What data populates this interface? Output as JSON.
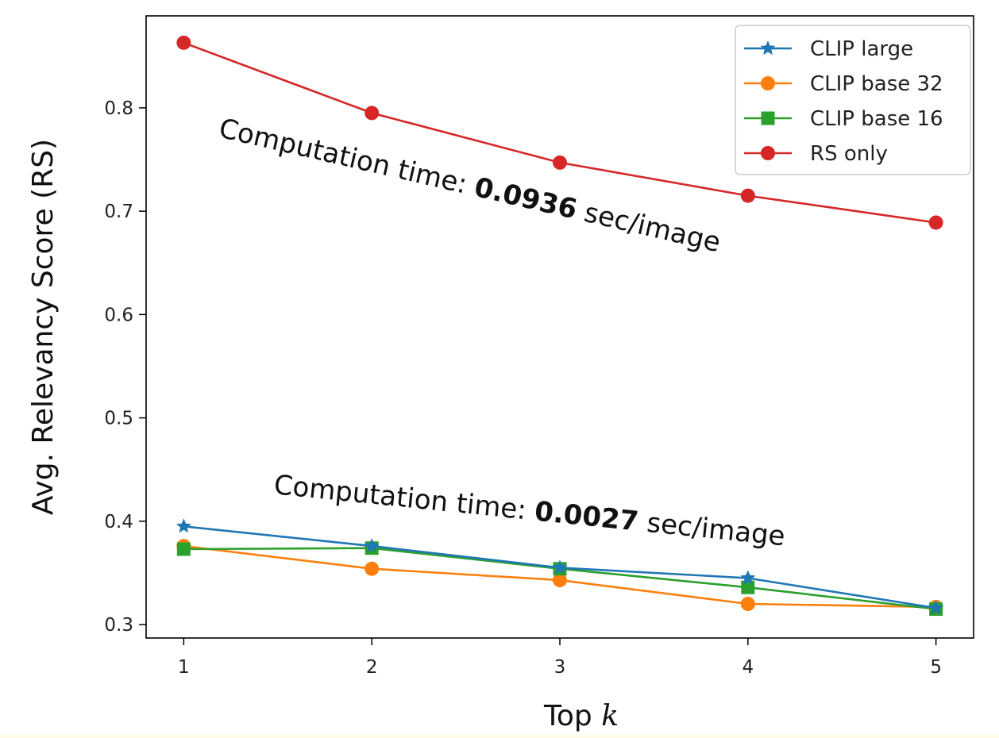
{
  "chart_data": {
    "type": "line",
    "xlabel_prefix": "Top",
    "xlabel_var": "k",
    "ylabel": "Avg. Relevancy Score (RS)",
    "x": [
      1,
      2,
      3,
      4,
      5
    ],
    "xlim": [
      0.8,
      5.2
    ],
    "ylim": [
      0.287,
      0.889
    ],
    "xticks": [
      "1",
      "2",
      "3",
      "4",
      "5"
    ],
    "yticks": [
      "0.3",
      "0.4",
      "0.5",
      "0.6",
      "0.7",
      "0.8"
    ],
    "ytick_values": [
      0.3,
      0.4,
      0.5,
      0.6,
      0.7,
      0.8
    ],
    "grid": false,
    "legend_position": "top-right",
    "series": [
      {
        "name": "CLIP large",
        "color": "#1f77b4",
        "marker": "star",
        "values": [
          0.395,
          0.376,
          0.355,
          0.345,
          0.316
        ]
      },
      {
        "name": "CLIP base 32",
        "color": "#ff7f0e",
        "marker": "circle",
        "values": [
          0.376,
          0.354,
          0.343,
          0.32,
          0.317
        ]
      },
      {
        "name": "CLIP base 16",
        "color": "#2ca02c",
        "marker": "square",
        "values": [
          0.373,
          0.374,
          0.354,
          0.336,
          0.315
        ]
      },
      {
        "name": "RS only",
        "color": "#d62728",
        "marker": "circle",
        "values": [
          0.863,
          0.795,
          0.747,
          0.715,
          0.689
        ]
      }
    ],
    "annotations": [
      {
        "prefix": "Computation time: ",
        "value": "0.0936",
        "suffix": " sec/image"
      },
      {
        "prefix": "Computation time: ",
        "value": "0.0027",
        "suffix": " sec/image"
      }
    ]
  }
}
